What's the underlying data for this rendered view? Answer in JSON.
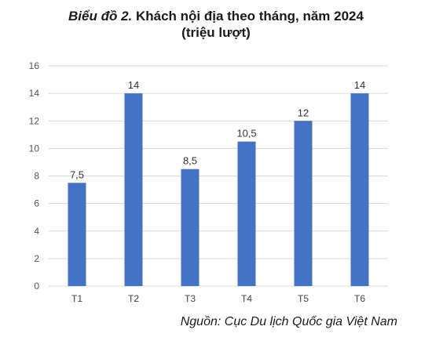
{
  "title_prefix": "Biểu đồ 2.",
  "title_main": " Khách nội địa theo tháng, năm 2024",
  "title_unit": "(triệu lượt)",
  "source": "Nguồn: Cục Du lịch Quốc gia Việt Nam",
  "chart_data": {
    "type": "bar",
    "title": "Biểu đồ 2. Khách nội địa theo tháng, năm 2024",
    "subtitle": "(triệu lượt)",
    "categories": [
      "T1",
      "T2",
      "T3",
      "T4",
      "T5",
      "T6"
    ],
    "values": [
      7.5,
      14,
      8.5,
      10.5,
      12,
      14
    ],
    "value_labels": [
      "7,5",
      "14",
      "8,5",
      "10,5",
      "12",
      "14"
    ],
    "yticks": [
      0,
      2,
      4,
      6,
      8,
      10,
      12,
      14,
      16
    ],
    "ylim": [
      0,
      16
    ],
    "grid": true,
    "bar_color": "#4472c4",
    "grid_color": "#d9d9d9"
  }
}
